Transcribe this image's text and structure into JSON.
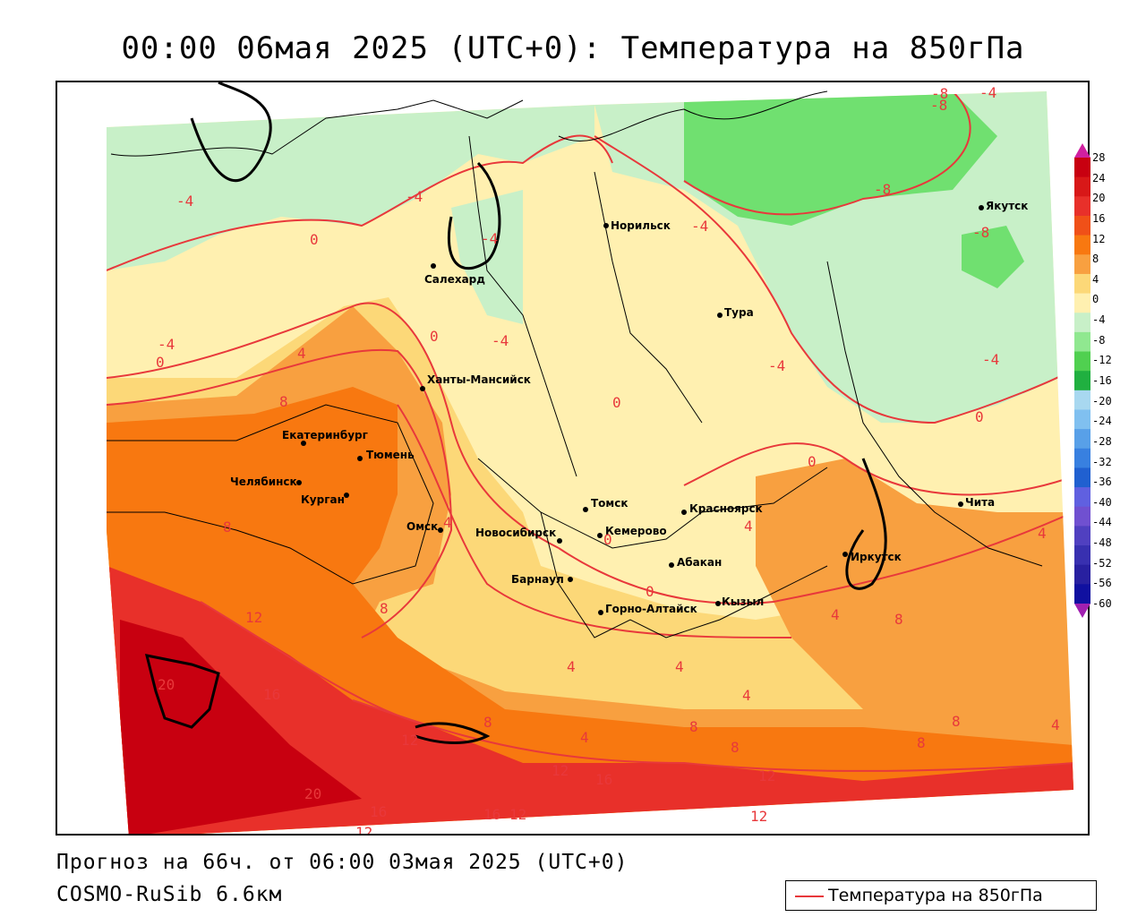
{
  "title": "00:00 06мая 2025 (UTC+0): Температура на 850гПа",
  "footer": {
    "forecast": "Прогноз на 66ч. от 06:00 03мая 2025 (UTC+0)",
    "model": "COSMO-RuSib 6.6км"
  },
  "legend": {
    "label": "Температура на 850гПа",
    "color": "#e8383b"
  },
  "colorbar": {
    "levels": [
      "28",
      "24",
      "20",
      "16",
      "12",
      "8",
      "4",
      "0",
      "-4",
      "-8",
      "-12",
      "-16",
      "-20",
      "-24",
      "-28",
      "-32",
      "-36",
      "-40",
      "-44",
      "-48",
      "-52",
      "-56",
      "-60"
    ],
    "colors": [
      "#c80010",
      "#d81818",
      "#e8302a",
      "#f05018",
      "#f87810",
      "#f8a040",
      "#fcd878",
      "#fff0b0",
      "#c8f0c8",
      "#90e890",
      "#50d050",
      "#20b040",
      "#a8d8f0",
      "#80c0f0",
      "#58a0e8",
      "#3880e0",
      "#2060d0",
      "#6060e0",
      "#7050d0",
      "#5040c0",
      "#3830b0",
      "#2820a0",
      "#1010a0"
    ]
  },
  "cities": [
    {
      "name": "Норильск"
    },
    {
      "name": "Якутск"
    },
    {
      "name": "Салехард"
    },
    {
      "name": "Тура"
    },
    {
      "name": "Ханты-Мансийск"
    },
    {
      "name": "Екатеринбург"
    },
    {
      "name": "Тюмень"
    },
    {
      "name": "Челябинск"
    },
    {
      "name": "Курган"
    },
    {
      "name": "Омск"
    },
    {
      "name": "Томск"
    },
    {
      "name": "Красноярск"
    },
    {
      "name": "Новосибирск"
    },
    {
      "name": "Кемерово"
    },
    {
      "name": "Абакан"
    },
    {
      "name": "Барнаул"
    },
    {
      "name": "Иркутск"
    },
    {
      "name": "Чита"
    },
    {
      "name": "Горно-Алтайск"
    },
    {
      "name": "Кызыл"
    }
  ],
  "isolabels": [
    "-4",
    "0",
    "-8",
    "-4",
    "-4",
    "-4",
    "-4",
    "0",
    "4",
    "8",
    "0",
    "-4",
    "-4",
    "0",
    "-4",
    "0",
    "-8",
    "-8",
    "-8",
    "-4",
    "4",
    "8",
    "4",
    "0",
    "4",
    "8",
    "12",
    "16",
    "20",
    "12",
    "8",
    "4",
    "4",
    "4",
    "8",
    "8",
    "4",
    "12",
    "16",
    "8",
    "12",
    "16",
    "12",
    "12",
    "20",
    "16",
    "12",
    "0",
    "0",
    "4",
    "8",
    "8",
    "4"
  ]
}
